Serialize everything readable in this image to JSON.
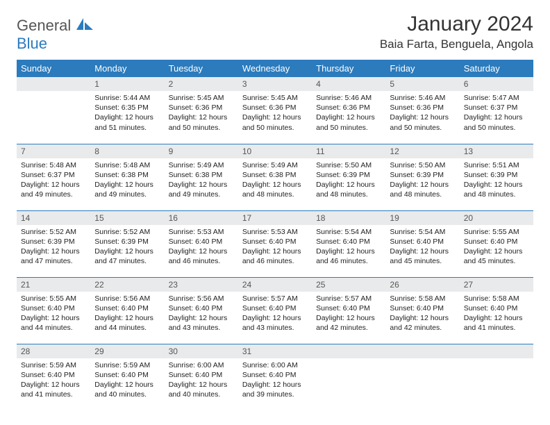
{
  "logo": {
    "general": "General",
    "blue": "Blue"
  },
  "title": "January 2024",
  "location": "Baia Farta, Benguela, Angola",
  "colors": {
    "header_bg": "#2b7bbd",
    "header_text": "#ffffff",
    "daynum_bg": "#e9eaeb",
    "row_divider": "#2b7bbd",
    "text": "#333333"
  },
  "fonts": {
    "title_size": 30,
    "location_size": 17,
    "dow_size": 13,
    "body_size": 10.5
  },
  "daysOfWeek": [
    "Sunday",
    "Monday",
    "Tuesday",
    "Wednesday",
    "Thursday",
    "Friday",
    "Saturday"
  ],
  "weeks": [
    [
      null,
      {
        "n": "1",
        "sunrise": "5:44 AM",
        "sunset": "6:35 PM",
        "daylight": "12 hours and 51 minutes."
      },
      {
        "n": "2",
        "sunrise": "5:45 AM",
        "sunset": "6:36 PM",
        "daylight": "12 hours and 50 minutes."
      },
      {
        "n": "3",
        "sunrise": "5:45 AM",
        "sunset": "6:36 PM",
        "daylight": "12 hours and 50 minutes."
      },
      {
        "n": "4",
        "sunrise": "5:46 AM",
        "sunset": "6:36 PM",
        "daylight": "12 hours and 50 minutes."
      },
      {
        "n": "5",
        "sunrise": "5:46 AM",
        "sunset": "6:36 PM",
        "daylight": "12 hours and 50 minutes."
      },
      {
        "n": "6",
        "sunrise": "5:47 AM",
        "sunset": "6:37 PM",
        "daylight": "12 hours and 50 minutes."
      }
    ],
    [
      {
        "n": "7",
        "sunrise": "5:48 AM",
        "sunset": "6:37 PM",
        "daylight": "12 hours and 49 minutes."
      },
      {
        "n": "8",
        "sunrise": "5:48 AM",
        "sunset": "6:38 PM",
        "daylight": "12 hours and 49 minutes."
      },
      {
        "n": "9",
        "sunrise": "5:49 AM",
        "sunset": "6:38 PM",
        "daylight": "12 hours and 49 minutes."
      },
      {
        "n": "10",
        "sunrise": "5:49 AM",
        "sunset": "6:38 PM",
        "daylight": "12 hours and 48 minutes."
      },
      {
        "n": "11",
        "sunrise": "5:50 AM",
        "sunset": "6:39 PM",
        "daylight": "12 hours and 48 minutes."
      },
      {
        "n": "12",
        "sunrise": "5:50 AM",
        "sunset": "6:39 PM",
        "daylight": "12 hours and 48 minutes."
      },
      {
        "n": "13",
        "sunrise": "5:51 AM",
        "sunset": "6:39 PM",
        "daylight": "12 hours and 48 minutes."
      }
    ],
    [
      {
        "n": "14",
        "sunrise": "5:52 AM",
        "sunset": "6:39 PM",
        "daylight": "12 hours and 47 minutes."
      },
      {
        "n": "15",
        "sunrise": "5:52 AM",
        "sunset": "6:39 PM",
        "daylight": "12 hours and 47 minutes."
      },
      {
        "n": "16",
        "sunrise": "5:53 AM",
        "sunset": "6:40 PM",
        "daylight": "12 hours and 46 minutes."
      },
      {
        "n": "17",
        "sunrise": "5:53 AM",
        "sunset": "6:40 PM",
        "daylight": "12 hours and 46 minutes."
      },
      {
        "n": "18",
        "sunrise": "5:54 AM",
        "sunset": "6:40 PM",
        "daylight": "12 hours and 46 minutes."
      },
      {
        "n": "19",
        "sunrise": "5:54 AM",
        "sunset": "6:40 PM",
        "daylight": "12 hours and 45 minutes."
      },
      {
        "n": "20",
        "sunrise": "5:55 AM",
        "sunset": "6:40 PM",
        "daylight": "12 hours and 45 minutes."
      }
    ],
    [
      {
        "n": "21",
        "sunrise": "5:55 AM",
        "sunset": "6:40 PM",
        "daylight": "12 hours and 44 minutes."
      },
      {
        "n": "22",
        "sunrise": "5:56 AM",
        "sunset": "6:40 PM",
        "daylight": "12 hours and 44 minutes."
      },
      {
        "n": "23",
        "sunrise": "5:56 AM",
        "sunset": "6:40 PM",
        "daylight": "12 hours and 43 minutes."
      },
      {
        "n": "24",
        "sunrise": "5:57 AM",
        "sunset": "6:40 PM",
        "daylight": "12 hours and 43 minutes."
      },
      {
        "n": "25",
        "sunrise": "5:57 AM",
        "sunset": "6:40 PM",
        "daylight": "12 hours and 42 minutes."
      },
      {
        "n": "26",
        "sunrise": "5:58 AM",
        "sunset": "6:40 PM",
        "daylight": "12 hours and 42 minutes."
      },
      {
        "n": "27",
        "sunrise": "5:58 AM",
        "sunset": "6:40 PM",
        "daylight": "12 hours and 41 minutes."
      }
    ],
    [
      {
        "n": "28",
        "sunrise": "5:59 AM",
        "sunset": "6:40 PM",
        "daylight": "12 hours and 41 minutes."
      },
      {
        "n": "29",
        "sunrise": "5:59 AM",
        "sunset": "6:40 PM",
        "daylight": "12 hours and 40 minutes."
      },
      {
        "n": "30",
        "sunrise": "6:00 AM",
        "sunset": "6:40 PM",
        "daylight": "12 hours and 40 minutes."
      },
      {
        "n": "31",
        "sunrise": "6:00 AM",
        "sunset": "6:40 PM",
        "daylight": "12 hours and 39 minutes."
      },
      null,
      null,
      null
    ]
  ],
  "labels": {
    "sunrise": "Sunrise:",
    "sunset": "Sunset:",
    "daylight": "Daylight:"
  }
}
